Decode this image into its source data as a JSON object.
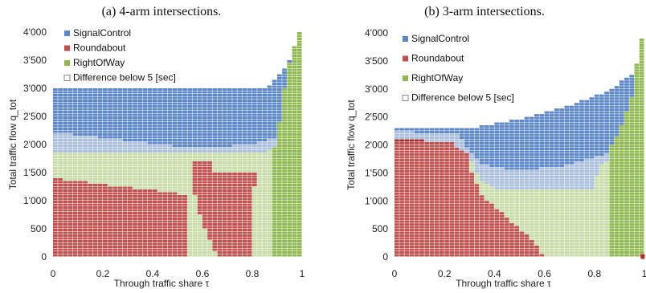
{
  "colors": {
    "signal": "#5b86c7",
    "signal_light": "#a9bfdd",
    "roundabout": "#c0504d",
    "roundabout_light": "#dba8a6",
    "rightofway": "#8fb84f",
    "rightofway_light": "#c8dca8",
    "grid": "#ffffff"
  },
  "chart_data": [
    {
      "type": "heatmap",
      "title": "(a) 4-arm intersections.",
      "xlabel": "Through traffic share τ",
      "ylabel": "Total traffic flow q_tot",
      "xlim": [
        0,
        1
      ],
      "ylim": [
        0,
        4000
      ],
      "x_ticks": [
        "0",
        "0.2",
        "0.4",
        "0.6",
        "0.8",
        "1"
      ],
      "y_ticks": [
        "0",
        "500",
        "1'000",
        "1'500",
        "2'000",
        "2'500",
        "3'000",
        "3'500",
        "4'000"
      ],
      "legend": [
        "SignalControl",
        "Roundabout",
        "RightOfWay",
        "Difference below 5 [sec]"
      ],
      "legend_position": "top-left",
      "x_step": 0.02,
      "y_step": 50,
      "signal_top": [
        [
          0,
          3000
        ],
        [
          0.86,
          3000
        ],
        [
          0.9,
          3200
        ],
        [
          0.93,
          3350
        ],
        [
          0.95,
          3500
        ],
        [
          0.96,
          3250
        ]
      ],
      "signal_bottom": [
        [
          0,
          2100
        ],
        [
          0.5,
          1850
        ],
        [
          0.7,
          1850
        ],
        [
          0.82,
          1900
        ],
        [
          0.9,
          2000
        ],
        [
          0.95,
          2150
        ],
        [
          0.96,
          2300
        ]
      ],
      "diff_band": 300,
      "roundabout_top": [
        [
          0,
          1850
        ],
        [
          0.64,
          1700
        ]
      ],
      "rightofway_lower_edge": [
        [
          0,
          1400
        ],
        [
          0.55,
          1100
        ],
        [
          0.6,
          500
        ],
        [
          0.66,
          0
        ]
      ],
      "green_wedge_left": [
        [
          0.8,
          1000
        ],
        [
          0.86,
          1700
        ],
        [
          0.9,
          1850
        ],
        [
          0.92,
          2600
        ],
        [
          0.95,
          3300
        ],
        [
          0.97,
          3600
        ],
        [
          0.98,
          4000
        ]
      ],
      "green_wedge_dark_from": 0.88
    },
    {
      "type": "heatmap",
      "title": "(b) 3-arm intersections.",
      "xlabel": "Through traffic share τ",
      "ylabel": "Total traffic flow q_tot",
      "xlim": [
        0,
        1
      ],
      "ylim": [
        0,
        4000
      ],
      "x_ticks": [
        "0",
        "0.2",
        "0.4",
        "0.6",
        "0.8",
        "1"
      ],
      "y_ticks": [
        "0",
        "500",
        "1'000",
        "1'500",
        "2'000",
        "2'500",
        "3'000",
        "3'500",
        "4'000"
      ],
      "legend": [
        "SignalControl",
        "Roundabout",
        "RightOfWay",
        "Difference below 5 [sec]"
      ],
      "legend_position": "top-left",
      "x_step": 0.02,
      "y_step": 50,
      "signal_top": [
        [
          0,
          2300
        ],
        [
          0.3,
          2300
        ],
        [
          0.5,
          2450
        ],
        [
          0.7,
          2700
        ],
        [
          0.85,
          2950
        ],
        [
          0.95,
          3250
        ]
      ],
      "signal_bottom": [
        [
          0,
          2100
        ],
        [
          0.25,
          2050
        ],
        [
          0.35,
          1500
        ],
        [
          0.5,
          1400
        ],
        [
          0.7,
          1500
        ],
        [
          0.85,
          1700
        ],
        [
          0.95,
          2100
        ]
      ],
      "diff_band": 350,
      "roundabout_top": [
        [
          0,
          2200
        ],
        [
          0.1,
          2250
        ],
        [
          0.2,
          2150
        ],
        [
          0.3,
          1800
        ],
        [
          0.34,
          1400
        ],
        [
          0.4,
          1200
        ]
      ],
      "rightofway_lower_edge": [
        [
          0,
          0
        ],
        [
          0.35,
          1100
        ],
        [
          0.45,
          700
        ],
        [
          0.55,
          300
        ],
        [
          0.6,
          0
        ]
      ],
      "green_wedge_left": [
        [
          0.8,
          1200
        ],
        [
          0.85,
          1700
        ],
        [
          0.9,
          2100
        ],
        [
          0.95,
          2700
        ],
        [
          0.97,
          3300
        ],
        [
          1.0,
          4000
        ]
      ],
      "green_wedge_dark_from": 0.86
    }
  ]
}
